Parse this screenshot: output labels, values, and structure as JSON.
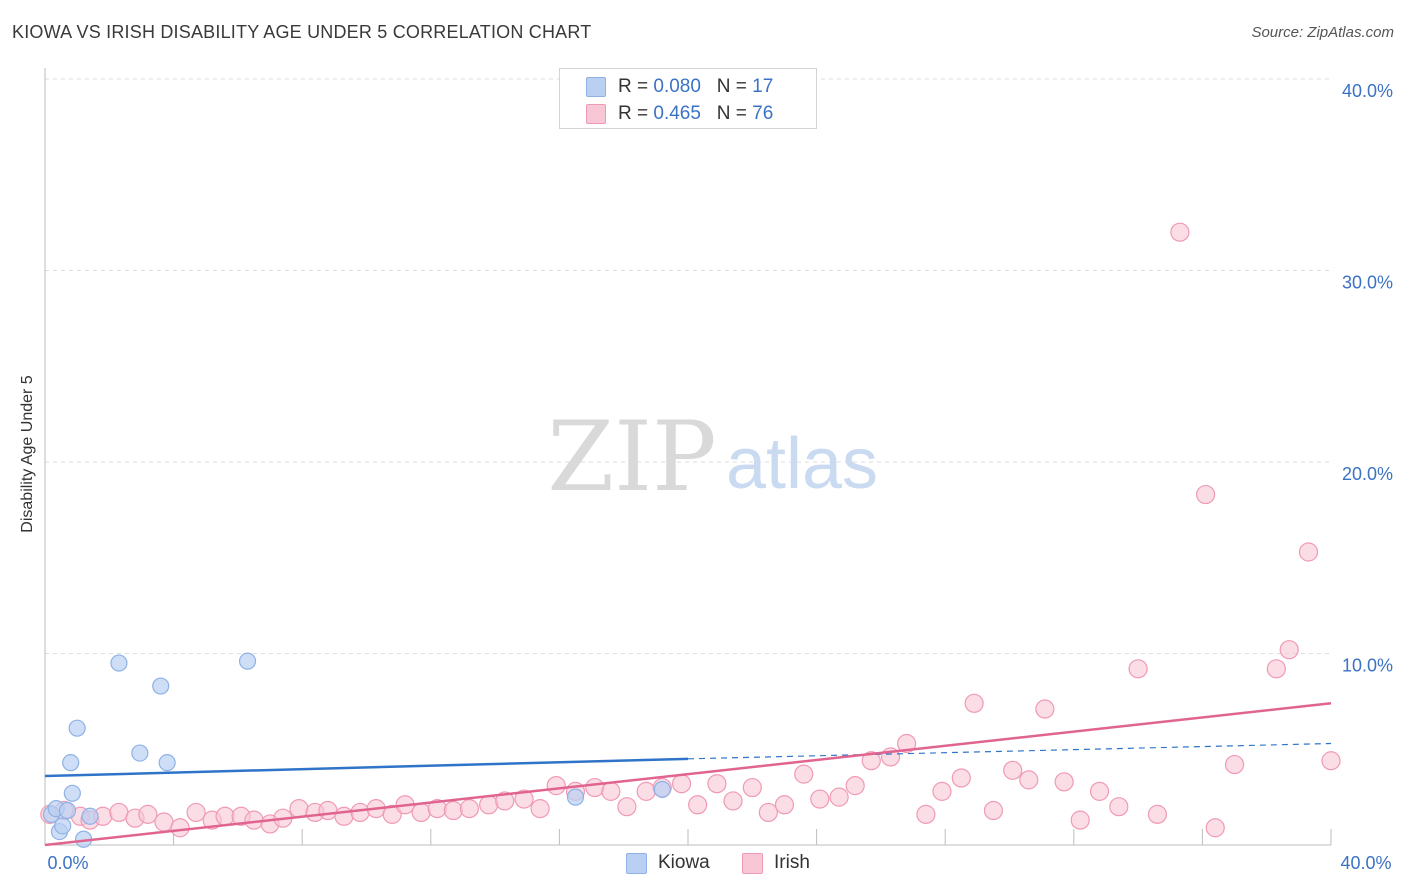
{
  "header": {
    "title": "KIOWA VS IRISH DISABILITY AGE UNDER 5 CORRELATION CHART",
    "source": "Source: ZipAtlas.com"
  },
  "watermark": {
    "zip": "ZIP",
    "atlas": "atlas"
  },
  "legend": {
    "rows": [
      {
        "r_label": "R =",
        "r_value": "0.080",
        "n_label": "N =",
        "n_value": "17"
      },
      {
        "r_label": "R =",
        "r_value": "0.465",
        "n_label": "N =",
        "n_value": "76"
      }
    ]
  },
  "colors": {
    "kiowa_fill": "#b9d0f2",
    "kiowa_stroke": "#8fb2e6",
    "kiowa_line": "#2f74c8",
    "irish_fill": "#f8c7d5",
    "irish_stroke": "#f09ab5",
    "irish_line": "#e0648f",
    "tick_label": "#3b72c4",
    "grid": "#dcdcdc"
  },
  "chart_data": {
    "type": "scatter",
    "title": "KIOWA VS IRISH DISABILITY AGE UNDER 5 CORRELATION CHART",
    "xlabel": "",
    "ylabel": "Disability Age Under 5",
    "xlim": [
      0,
      40
    ],
    "ylim": [
      0,
      40
    ],
    "x_tick_labels": [
      {
        "value": 0,
        "label": "0.0%"
      },
      {
        "value": 40,
        "label": "40.0%"
      }
    ],
    "y_tick_labels": [
      {
        "value": 10,
        "label": "10.0%"
      },
      {
        "value": 20,
        "label": "20.0%"
      },
      {
        "value": 30,
        "label": "30.0%"
      },
      {
        "value": 40,
        "label": "40.0%"
      }
    ],
    "series": [
      {
        "name": "Kiowa",
        "R": 0.08,
        "N": 17,
        "points": [
          [
            0.2,
            1.6
          ],
          [
            0.35,
            1.9
          ],
          [
            0.45,
            0.7
          ],
          [
            0.55,
            1.0
          ],
          [
            0.7,
            1.8
          ],
          [
            0.8,
            4.3
          ],
          [
            0.85,
            2.7
          ],
          [
            1.0,
            6.1
          ],
          [
            1.2,
            0.3
          ],
          [
            1.4,
            1.5
          ],
          [
            2.3,
            9.5
          ],
          [
            2.95,
            4.8
          ],
          [
            3.6,
            8.3
          ],
          [
            3.8,
            4.3
          ],
          [
            6.3,
            9.6
          ],
          [
            16.5,
            2.5
          ],
          [
            19.2,
            2.9
          ]
        ],
        "trend": {
          "x0": 0,
          "y0": 3.6,
          "x1": 20,
          "y1": 4.5,
          "x_end": 40,
          "y_end": 5.3
        }
      },
      {
        "name": "Irish",
        "R": 0.465,
        "N": 76,
        "points": [
          [
            0.15,
            1.6
          ],
          [
            0.6,
            1.8
          ],
          [
            1.1,
            1.5
          ],
          [
            1.4,
            1.3
          ],
          [
            1.8,
            1.5
          ],
          [
            2.3,
            1.7
          ],
          [
            2.8,
            1.4
          ],
          [
            3.2,
            1.6
          ],
          [
            3.7,
            1.2
          ],
          [
            4.2,
            0.9
          ],
          [
            4.7,
            1.7
          ],
          [
            5.2,
            1.3
          ],
          [
            5.6,
            1.5
          ],
          [
            6.1,
            1.5
          ],
          [
            6.5,
            1.3
          ],
          [
            7.0,
            1.1
          ],
          [
            7.4,
            1.4
          ],
          [
            7.9,
            1.9
          ],
          [
            8.4,
            1.7
          ],
          [
            8.8,
            1.8
          ],
          [
            9.3,
            1.5
          ],
          [
            9.8,
            1.7
          ],
          [
            10.3,
            1.9
          ],
          [
            10.8,
            1.6
          ],
          [
            11.2,
            2.1
          ],
          [
            11.7,
            1.7
          ],
          [
            12.2,
            1.9
          ],
          [
            12.7,
            1.8
          ],
          [
            13.2,
            1.9
          ],
          [
            13.8,
            2.1
          ],
          [
            14.3,
            2.3
          ],
          [
            14.9,
            2.4
          ],
          [
            15.4,
            1.9
          ],
          [
            15.9,
            3.1
          ],
          [
            16.5,
            2.8
          ],
          [
            17.1,
            3.0
          ],
          [
            17.6,
            2.8
          ],
          [
            18.1,
            2.0
          ],
          [
            18.7,
            2.8
          ],
          [
            19.2,
            3.0
          ],
          [
            19.8,
            3.2
          ],
          [
            20.3,
            2.1
          ],
          [
            20.9,
            3.2
          ],
          [
            21.4,
            2.3
          ],
          [
            22.0,
            3.0
          ],
          [
            22.5,
            1.7
          ],
          [
            23.0,
            2.1
          ],
          [
            23.6,
            3.7
          ],
          [
            24.1,
            2.4
          ],
          [
            24.7,
            2.5
          ],
          [
            25.2,
            3.1
          ],
          [
            25.7,
            4.4
          ],
          [
            26.3,
            4.6
          ],
          [
            26.8,
            5.3
          ],
          [
            27.4,
            1.6
          ],
          [
            27.9,
            2.8
          ],
          [
            28.5,
            3.5
          ],
          [
            28.9,
            7.4
          ],
          [
            29.5,
            1.8
          ],
          [
            30.1,
            3.9
          ],
          [
            30.6,
            3.4
          ],
          [
            31.1,
            7.1
          ],
          [
            31.7,
            3.3
          ],
          [
            32.2,
            1.3
          ],
          [
            32.8,
            2.8
          ],
          [
            33.4,
            2.0
          ],
          [
            34.0,
            9.2
          ],
          [
            34.6,
            1.6
          ],
          [
            35.3,
            32.0
          ],
          [
            36.1,
            18.3
          ],
          [
            36.4,
            0.9
          ],
          [
            37.0,
            4.2
          ],
          [
            38.3,
            9.2
          ],
          [
            38.7,
            10.2
          ],
          [
            39.3,
            15.3
          ],
          [
            40.0,
            4.4
          ]
        ],
        "trend": {
          "x0": 0,
          "y0": 0.0,
          "x1": 40,
          "y1": 7.4
        }
      }
    ]
  },
  "bottom_legend": {
    "items": [
      {
        "label": "Kiowa"
      },
      {
        "label": "Irish"
      }
    ]
  }
}
